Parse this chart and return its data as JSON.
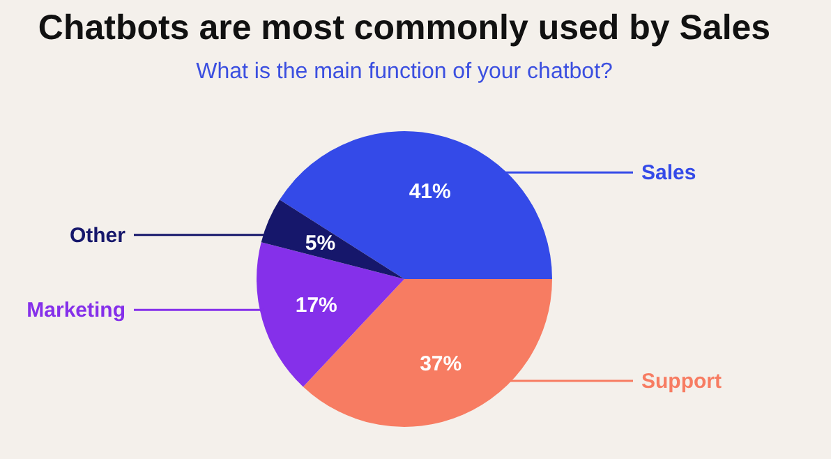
{
  "chart_data": {
    "type": "pie",
    "title": "Chatbots are most commonly used by Sales",
    "subtitle": "What is the main function of your chatbot?",
    "categories": [
      "Sales",
      "Support",
      "Marketing",
      "Other"
    ],
    "values": [
      41,
      37,
      17,
      5
    ],
    "value_labels": [
      "41%",
      "37%",
      "17%",
      "5%"
    ],
    "colors": [
      "#344ae8",
      "#f77c62",
      "#8530ea",
      "#16176b"
    ]
  }
}
